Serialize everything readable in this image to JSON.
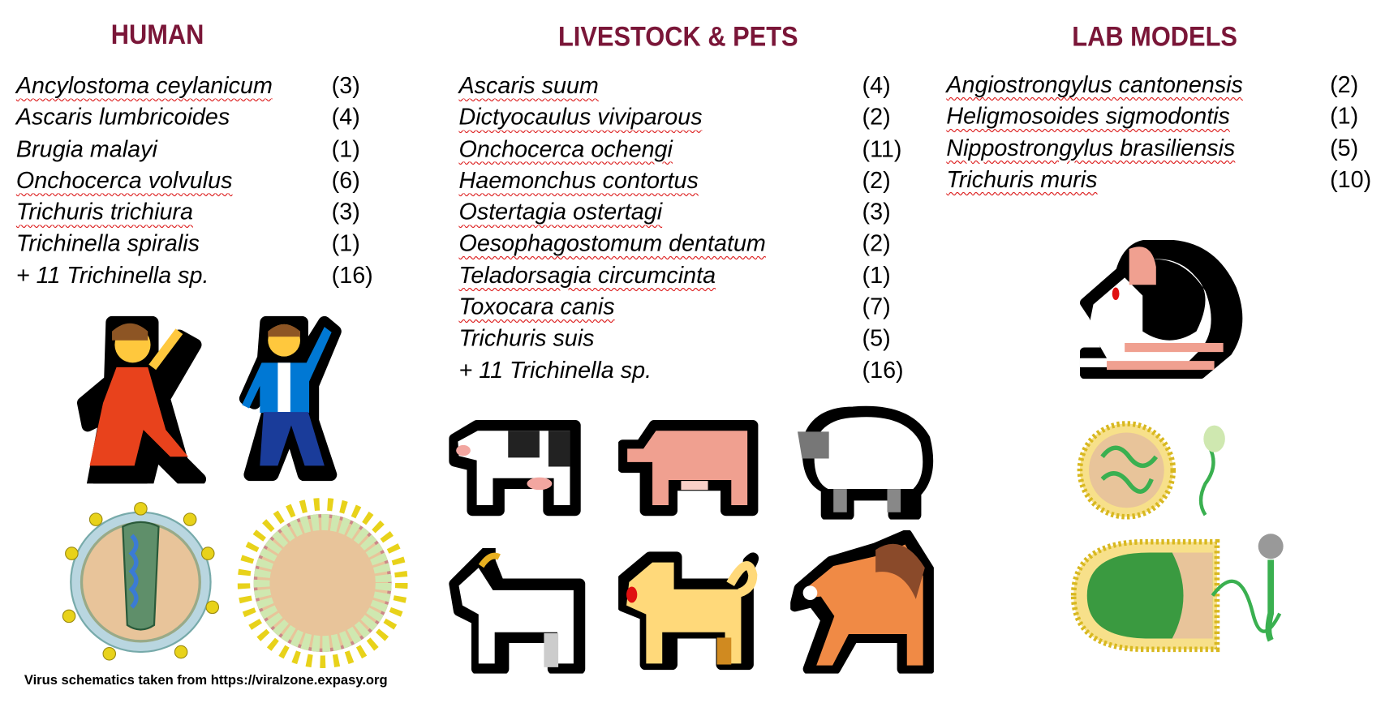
{
  "columns": [
    {
      "title": "HUMAN",
      "items": [
        {
          "name": "Ancylostoma ceylanicum",
          "count": "(3)",
          "flagged": true
        },
        {
          "name": "Ascaris lumbricoides",
          "count": "(4)",
          "flagged": false
        },
        {
          "name": "Brugia malayi",
          "count": "(1)",
          "flagged": false
        },
        {
          "name": "Onchocerca volvulus",
          "count": "(6)",
          "flagged": true
        },
        {
          "name": "Trichuris trichiura",
          "count": "(3)",
          "flagged": true
        },
        {
          "name": "Trichinella spiralis",
          "count": "(1)",
          "flagged": false
        },
        {
          "name": "+ 11 Trichinella sp.",
          "count": "(16)",
          "flagged": false
        }
      ],
      "icons": [
        "woman-dancing-icon",
        "man-dancing-icon",
        "hiv-virus-schematic",
        "coronavirus-schematic"
      ]
    },
    {
      "title": "LIVESTOCK & PETS",
      "items": [
        {
          "name": "Ascaris suum",
          "count": "(4)",
          "flagged": true
        },
        {
          "name": "Dictyocaulus viviparous",
          "count": "(2)",
          "flagged": true
        },
        {
          "name": "Onchocerca ochengi",
          "count": "(11)",
          "flagged": true
        },
        {
          "name": "Haemonchus contortus",
          "count": "(2)",
          "flagged": true
        },
        {
          "name": "Ostertagia ostertagi",
          "count": "(3)",
          "flagged": true
        },
        {
          "name": "Oesophagostomum dentatum",
          "count": "(2)",
          "flagged": true
        },
        {
          "name": "Teladorsagia circumcinta",
          "count": "(1)",
          "flagged": true
        },
        {
          "name": "Toxocara canis",
          "count": "(7)",
          "flagged": true
        },
        {
          "name": "Trichuris suis",
          "count": "(5)",
          "flagged": false
        },
        {
          "name": "+ 11 Trichinella sp.",
          "count": "(16)",
          "flagged": false
        }
      ],
      "icons": [
        "cow-icon",
        "pig-icon",
        "sheep-icon",
        "goat-icon",
        "dog-icon",
        "horse-icon"
      ]
    },
    {
      "title": "LAB MODELS",
      "items": [
        {
          "name": "Angiostrongylus cantonensis",
          "count": "(2)",
          "flagged": true
        },
        {
          "name": "Heligmosoides sigmodontis",
          "count": "(1)",
          "flagged": true
        },
        {
          "name": "Nippostrongylus brasiliensis",
          "count": "(5)",
          "flagged": true
        },
        {
          "name": "Trichuris muris",
          "count": "(10)",
          "flagged": true
        }
      ],
      "icons": [
        "mouse-icon",
        "herpesvirus-schematic",
        "phage-schematic"
      ]
    }
  ],
  "footer": "Virus schematics taken from https://viralzone.expasy.org",
  "colors": {
    "title": "#7a1638",
    "spellcheck_underline": "#dd2222"
  }
}
